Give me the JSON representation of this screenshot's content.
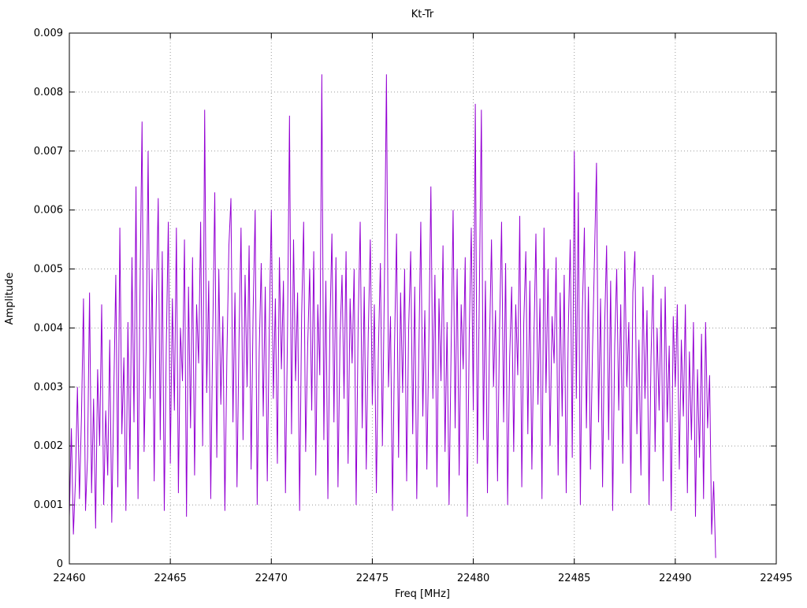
{
  "page": {
    "background": "#ffffff"
  },
  "chart_data": {
    "type": "line",
    "title": "Kt-Tr",
    "xlabel": "Freq [MHz]",
    "ylabel": "Amplitude",
    "xlim": [
      22460,
      22495
    ],
    "ylim": [
      0,
      0.009
    ],
    "x_ticks": [
      22460,
      22465,
      22470,
      22475,
      22480,
      22485,
      22490,
      22495
    ],
    "x_tick_labels": [
      "22460",
      "22465",
      "22470",
      "22475",
      "22480",
      "22485",
      "22490",
      "22495"
    ],
    "y_ticks": [
      0,
      0.001,
      0.002,
      0.003,
      0.004,
      0.005,
      0.006,
      0.007,
      0.008,
      0.009
    ],
    "y_tick_labels": [
      "0",
      "0.001",
      "0.002",
      "0.003",
      "0.004",
      "0.005",
      "0.006",
      "0.007",
      "0.008",
      "0.009"
    ],
    "grid": true,
    "grid_style": "dotted",
    "grid_color": "#9a9a9a",
    "line_color": "#9400D3",
    "legend_position": "none",
    "x_start": 22460,
    "x_step": 0.1,
    "y_scale": 0.0001,
    "values": [
      8,
      23,
      5,
      14,
      30,
      11,
      25,
      45,
      9,
      18,
      46,
      12,
      28,
      6,
      33,
      20,
      44,
      10,
      26,
      15,
      38,
      7,
      29,
      49,
      13,
      57,
      22,
      35,
      9,
      41,
      16,
      52,
      24,
      64,
      11,
      47,
      75,
      19,
      36,
      70,
      28,
      50,
      14,
      43,
      62,
      21,
      53,
      9,
      37,
      58,
      17,
      45,
      26,
      57,
      12,
      40,
      31,
      55,
      8,
      47,
      23,
      52,
      15,
      44,
      34,
      58,
      20,
      77,
      29,
      48,
      11,
      39,
      63,
      18,
      50,
      27,
      42,
      9,
      35,
      54,
      62,
      24,
      46,
      13,
      38,
      57,
      21,
      49,
      30,
      54,
      16,
      43,
      60,
      10,
      36,
      51,
      25,
      47,
      14,
      40,
      60,
      28,
      45,
      17,
      52,
      33,
      48,
      12,
      39,
      76,
      22,
      55,
      31,
      46,
      9,
      42,
      58,
      19,
      37,
      50,
      26,
      53,
      15,
      44,
      32,
      83,
      21,
      48,
      11,
      40,
      56,
      24,
      52,
      13,
      38,
      49,
      28,
      53,
      17,
      45,
      34,
      50,
      10,
      41,
      58,
      23,
      47,
      16,
      39,
      55,
      27,
      44,
      12,
      36,
      51,
      20,
      48,
      83,
      30,
      42,
      9,
      37,
      56,
      18,
      46,
      29,
      50,
      14,
      40,
      53,
      22,
      47,
      11,
      35,
      58,
      25,
      43,
      16,
      38,
      64,
      28,
      49,
      13,
      45,
      31,
      54,
      19,
      41,
      10,
      36,
      60,
      23,
      50,
      15,
      44,
      33,
      52,
      8,
      39,
      57,
      26,
      78,
      17,
      46,
      77,
      21,
      48,
      12,
      37,
      55,
      30,
      43,
      14,
      40,
      58,
      24,
      51,
      10,
      35,
      47,
      19,
      44,
      32,
      59,
      13,
      41,
      53,
      22,
      48,
      16,
      38,
      56,
      27,
      45,
      11,
      57,
      29,
      50,
      20,
      42,
      34,
      52,
      15,
      46,
      25,
      49,
      12,
      39,
      55,
      18,
      70,
      28,
      63,
      10,
      43,
      57,
      23,
      47,
      16,
      36,
      52,
      68,
      24,
      45,
      13,
      40,
      54,
      21,
      48,
      9,
      37,
      50,
      26,
      44,
      17,
      53,
      30,
      41,
      12,
      46,
      53,
      22,
      38,
      15,
      47,
      28,
      43,
      10,
      35,
      49,
      19,
      40,
      26,
      45,
      14,
      47,
      24,
      37,
      9,
      42,
      30,
      44,
      16,
      38,
      25,
      44,
      12,
      36,
      21,
      41,
      8,
      33,
      18,
      39,
      11,
      41,
      23,
      32,
      5,
      14,
      1
    ]
  }
}
